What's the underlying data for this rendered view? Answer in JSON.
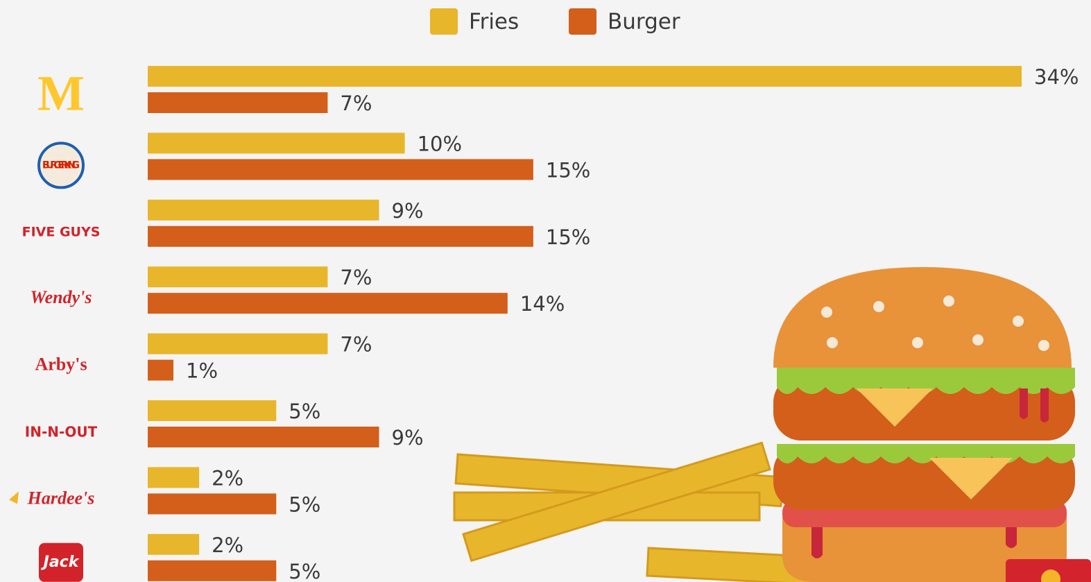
{
  "chart_data": {
    "type": "bar",
    "orientation": "horizontal",
    "categories": [
      "M",
      "BURGER KING",
      "FIVE GUYS",
      "Wendy's",
      "Arby's",
      "IN-N-OUT",
      "Hardee's",
      "Jack"
    ],
    "series": [
      {
        "name": "Fries",
        "color": "#E8B62A",
        "values": [
          34,
          10,
          9,
          7,
          7,
          5,
          2,
          2
        ],
        "value_labels": [
          "34%",
          "10%",
          "9%",
          "7%",
          "7%",
          "5%",
          "2%",
          "2%"
        ]
      },
      {
        "name": "Burger",
        "color": "#D35F1A",
        "values": [
          7,
          15,
          15,
          14,
          1,
          9,
          5,
          5
        ],
        "value_labels": [
          "7%",
          "15%",
          "15%",
          "14%",
          "1%",
          "9%",
          "5%",
          "5%"
        ]
      }
    ],
    "legend": "top"
  }
}
